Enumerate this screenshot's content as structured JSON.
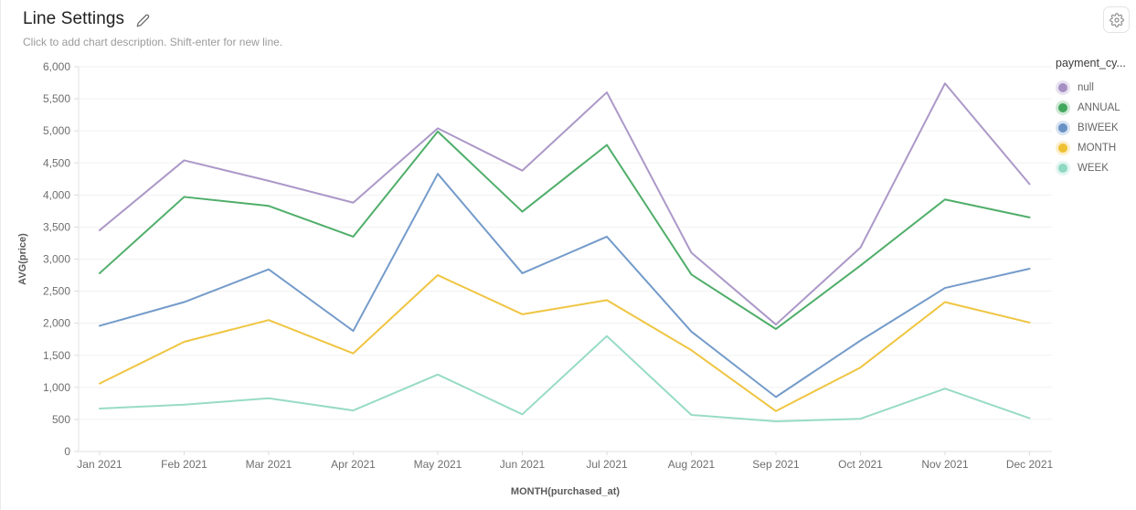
{
  "header": {
    "title": "Line Settings",
    "subtitle": "Click to add chart description. Shift-enter for new line."
  },
  "toolbar": {
    "settings_icon": "gear-icon"
  },
  "legend": {
    "title": "payment_cy..."
  },
  "chart_data": {
    "type": "line",
    "title": "Line Settings",
    "xlabel": "MONTH(purchased_at)",
    "ylabel": "AVG(price)",
    "ylim": [
      0,
      6000
    ],
    "ytick_step": 500,
    "grid": "horizontal",
    "legend_position": "right",
    "legend_title": "payment_cy...",
    "categories": [
      "Jan 2021",
      "Feb 2021",
      "Mar 2021",
      "Apr 2021",
      "May 2021",
      "Jun 2021",
      "Jul 2021",
      "Aug 2021",
      "Sep 2021",
      "Oct 2021",
      "Nov 2021",
      "Dec 2021"
    ],
    "series": [
      {
        "name": "null",
        "color": "#a58fc3",
        "values": [
          3450,
          4540,
          4220,
          3880,
          5040,
          4380,
          5600,
          3100,
          1980,
          3180,
          5740,
          4170
        ]
      },
      {
        "name": "ANNUAL",
        "color": "#41a75d",
        "values": [
          2780,
          3970,
          3830,
          3350,
          4990,
          3740,
          4780,
          2760,
          1910,
          2900,
          3930,
          3650
        ]
      },
      {
        "name": "BIWEEK",
        "color": "#6892c6",
        "values": [
          1960,
          2330,
          2840,
          1880,
          4330,
          2780,
          3350,
          1870,
          850,
          1730,
          2550,
          2850
        ]
      },
      {
        "name": "MONTH",
        "color": "#eec032",
        "values": [
          1060,
          1710,
          2050,
          1530,
          2750,
          2140,
          2360,
          1580,
          630,
          1310,
          2330,
          2010
        ]
      },
      {
        "name": "WEEK",
        "color": "#8fd8c2",
        "values": [
          670,
          730,
          830,
          640,
          1200,
          580,
          1800,
          570,
          470,
          510,
          980,
          520
        ]
      }
    ]
  }
}
